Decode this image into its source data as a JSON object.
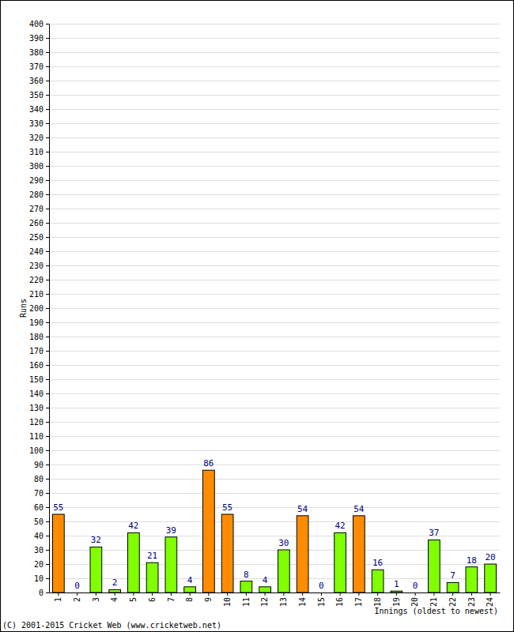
{
  "chart_data": {
    "type": "bar",
    "categories": [
      "1",
      "2",
      "3",
      "4",
      "5",
      "6",
      "7",
      "8",
      "9",
      "10",
      "11",
      "12",
      "13",
      "14",
      "15",
      "16",
      "17",
      "18",
      "19",
      "20",
      "21",
      "22",
      "23",
      "24"
    ],
    "values": [
      55,
      0,
      32,
      2,
      42,
      21,
      39,
      4,
      86,
      55,
      8,
      4,
      30,
      54,
      0,
      42,
      54,
      16,
      1,
      0,
      37,
      7,
      18,
      20
    ],
    "colors": [
      "#ff8c00",
      "#7fff00",
      "#7fff00",
      "#7fff00",
      "#7fff00",
      "#7fff00",
      "#7fff00",
      "#7fff00",
      "#ff8c00",
      "#ff8c00",
      "#7fff00",
      "#7fff00",
      "#7fff00",
      "#ff8c00",
      "#7fff00",
      "#7fff00",
      "#ff8c00",
      "#7fff00",
      "#7fff00",
      "#7fff00",
      "#7fff00",
      "#7fff00",
      "#7fff00",
      "#7fff00"
    ],
    "ylim": [
      0,
      400
    ],
    "yticks": [
      0,
      10,
      20,
      30,
      40,
      50,
      60,
      70,
      80,
      90,
      100,
      110,
      120,
      130,
      140,
      150,
      160,
      170,
      180,
      190,
      200,
      210,
      220,
      230,
      240,
      250,
      260,
      270,
      280,
      290,
      300,
      310,
      320,
      330,
      340,
      350,
      360,
      370,
      380,
      390,
      400
    ],
    "grid": true,
    "data_labels": true,
    "y_label": "Runs",
    "x_label": "Innings (oldest to newest)",
    "annotation": "(C) 2001-2015 Cricket Web (www.cricketweb.net)"
  }
}
